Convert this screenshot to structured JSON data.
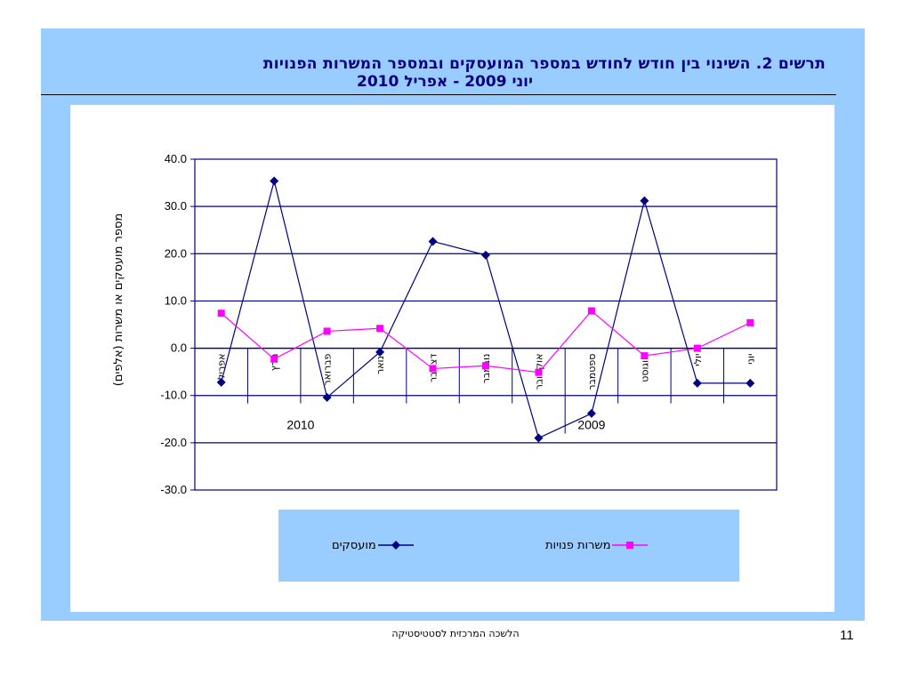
{
  "slide": {
    "title_line1": "תרשים 2. השינוי בין חודש לחודש במספר המועסקים ובמספר המשרות הפנויות",
    "title_line2": "יוני 2009 - אפריל 2010",
    "footer": "הלשכה המרכזית לסטטיסטיקה",
    "page_number": "11",
    "background_color": "#99ccff"
  },
  "chart_data": {
    "type": "line",
    "title": "",
    "xlabel": "",
    "ylabel": "מספר מועסקים או משרות (אלפים)",
    "ylim": [
      -30,
      40
    ],
    "yticks": [
      "40.0",
      "30.0",
      "20.0",
      "10.0",
      "0.0",
      "-10.0",
      "-20.0",
      "-30.0"
    ],
    "categories": [
      "יוני",
      "יולי",
      "אוגוסט",
      "ספטמבר",
      "אוקטובר",
      "נובמבר",
      "דצמבר",
      "ינואר",
      "פברואר",
      "מרץ",
      "אפריל"
    ],
    "year_groups": [
      {
        "label": "2009",
        "count": 7
      },
      {
        "label": "2010",
        "count": 4
      }
    ],
    "grid": "horizontal",
    "legend_position": "bottom",
    "series": [
      {
        "name": "מועסקים",
        "color": "#000080",
        "marker": "diamond",
        "values": [
          -7.4,
          -7.4,
          31.2,
          -13.8,
          -19.0,
          19.7,
          22.6,
          -0.8,
          -10.4,
          35.4,
          -7.2
        ]
      },
      {
        "name": "משרות פנויות",
        "color": "#ff00ff",
        "marker": "square",
        "values": [
          5.4,
          0.0,
          -1.6,
          7.9,
          -5.1,
          -3.7,
          -4.3,
          4.2,
          3.6,
          -2.3,
          7.4
        ]
      }
    ]
  }
}
